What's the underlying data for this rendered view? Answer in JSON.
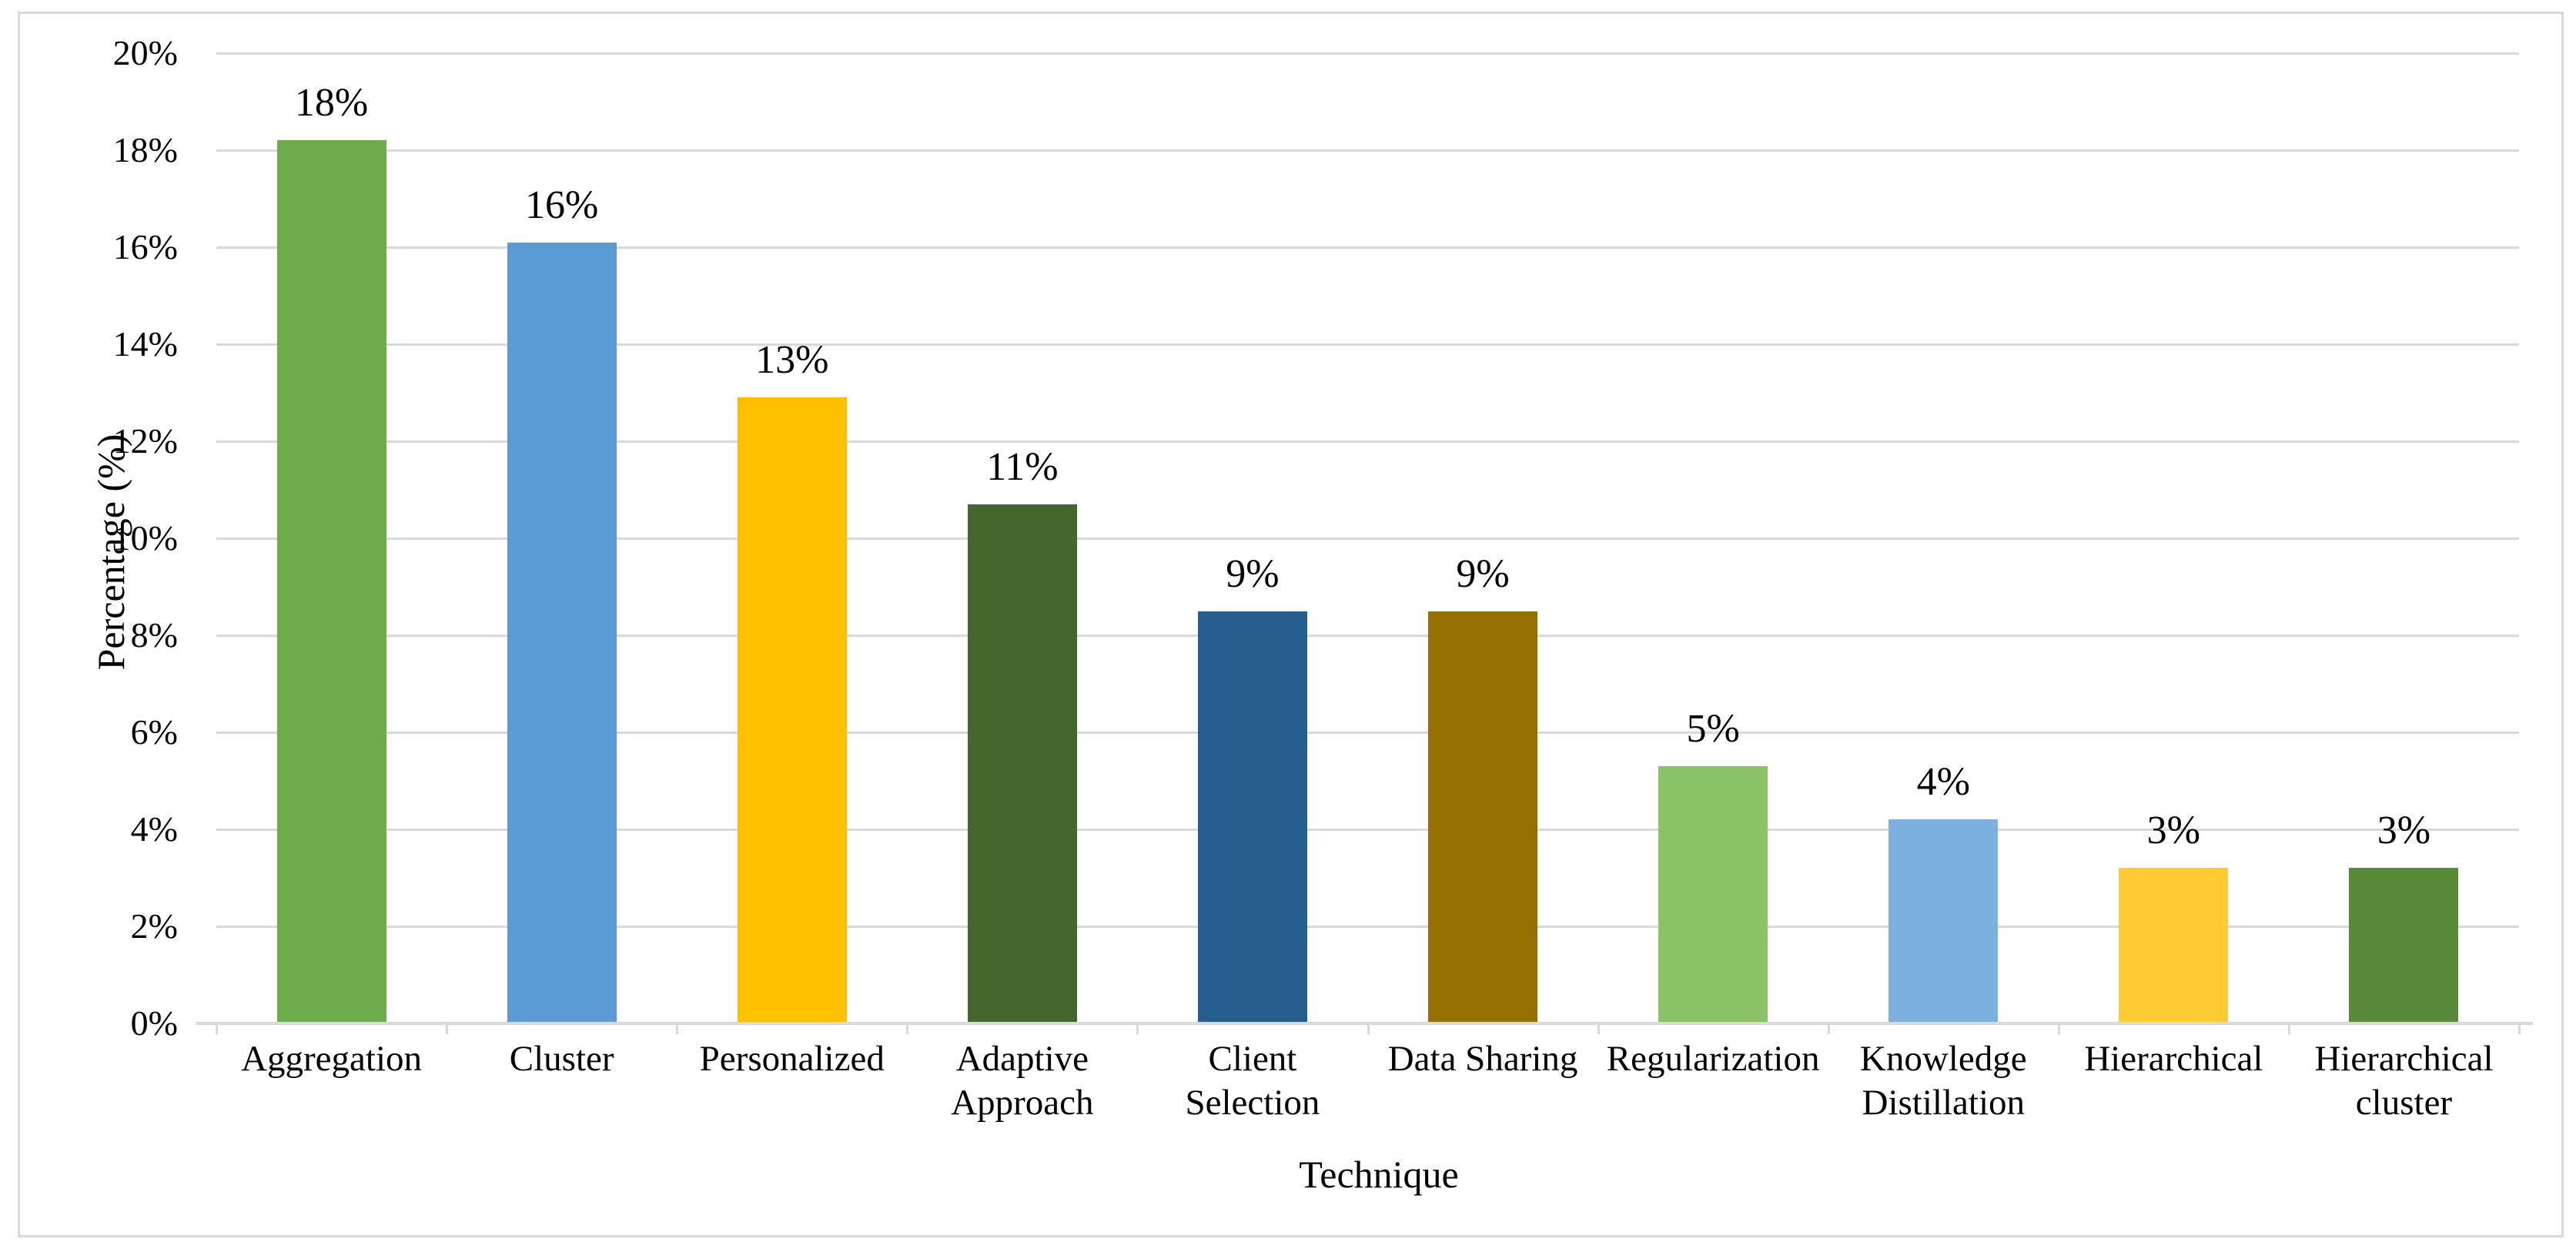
{
  "chart_data": {
    "type": "bar",
    "title": "",
    "xlabel": "Technique",
    "ylabel": "Percentage (%)",
    "categories": [
      "Aggregation",
      "Cluster",
      "Personalized",
      "Adaptive Approach",
      "Client Selection",
      "Data Sharing",
      "Regularization",
      "Knowledge Distillation",
      "Hierarchical",
      "Hierarchical cluster"
    ],
    "values": [
      18.2,
      16.1,
      12.9,
      10.7,
      8.5,
      8.5,
      5.3,
      4.2,
      3.2,
      3.2
    ],
    "bar_labels": [
      "18%",
      "16%",
      "13%",
      "11%",
      "9%",
      "9%",
      "5%",
      "4%",
      "3%",
      "3%"
    ],
    "bar_colors": [
      "#6CAC4A",
      "#5B9BD5",
      "#FFC000",
      "#44682C",
      "#265E91",
      "#957000",
      "#8BC167",
      "#7CB0DE",
      "#FECB34",
      "#598A3A"
    ],
    "y_ticks": [
      "0%",
      "2%",
      "4%",
      "6%",
      "8%",
      "10%",
      "12%",
      "14%",
      "16%",
      "18%",
      "20%"
    ],
    "ylim": [
      0,
      20
    ],
    "y_tick_step": 2,
    "grid": true,
    "legend": "none"
  },
  "colors": {
    "background": "#ffffff",
    "border": "#d9d9d9",
    "gridline": "#d9d9d9",
    "axis": "#d9d9d9",
    "text": "#000000"
  }
}
